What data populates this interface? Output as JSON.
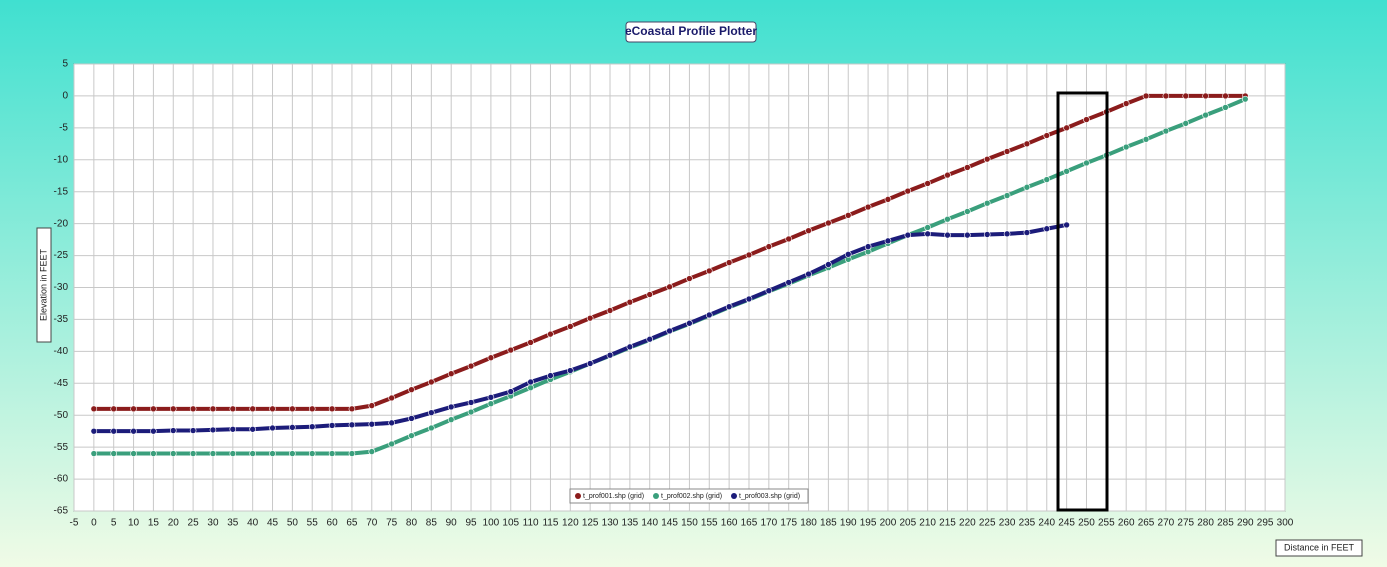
{
  "chart_data": {
    "type": "line",
    "title": "eCoastal Profile Plotter",
    "x_label": "Distance in FEET",
    "y_label": "Elevation in FEET",
    "x": [
      0,
      5,
      10,
      15,
      20,
      25,
      30,
      35,
      40,
      45,
      50,
      55,
      60,
      65,
      70,
      75,
      80,
      85,
      90,
      95,
      100,
      105,
      110,
      115,
      120,
      125,
      130,
      135,
      140,
      145,
      150,
      155,
      160,
      165,
      170,
      175,
      180,
      185,
      190,
      195,
      200,
      205,
      210,
      215,
      220,
      225,
      230,
      235,
      240,
      245,
      250,
      255,
      260,
      265,
      270,
      275,
      280,
      285,
      290
    ],
    "series": [
      {
        "name": "t_prof001.shp (grid)",
        "color": "#8b1c1c",
        "values": [
          -49,
          -49,
          -49,
          -49,
          -49,
          -49,
          -49,
          -49,
          -49,
          -49,
          -49,
          -49,
          -49,
          -49,
          -48.5,
          -47.3,
          -46.0,
          -44.8,
          -43.5,
          -42.3,
          -41.0,
          -39.8,
          -38.6,
          -37.3,
          -36.1,
          -34.8,
          -33.6,
          -32.3,
          -31.1,
          -29.9,
          -28.6,
          -27.4,
          -26.1,
          -24.9,
          -23.6,
          -22.4,
          -21.1,
          -19.9,
          -18.7,
          -17.4,
          -16.2,
          -14.9,
          -13.7,
          -12.4,
          -11.2,
          -9.9,
          -8.7,
          -7.5,
          -6.2,
          -5.0,
          -3.7,
          -2.5,
          -1.2,
          0,
          0,
          0,
          0,
          0,
          0
        ]
      },
      {
        "name": "t_prof002.shp (grid)",
        "color": "#3a9f7c",
        "values": [
          -56,
          -56,
          -56,
          -56,
          -56,
          -56,
          -56,
          -56,
          -56,
          -56,
          -56,
          -56,
          -56,
          -56,
          -55.7,
          -54.5,
          -53.2,
          -52.0,
          -50.7,
          -49.5,
          -48.2,
          -47.0,
          -45.7,
          -44.4,
          -43.2,
          -41.9,
          -40.7,
          -39.4,
          -38.2,
          -36.9,
          -35.7,
          -34.4,
          -33.1,
          -31.9,
          -30.6,
          -29.4,
          -28.1,
          -26.9,
          -25.6,
          -24.4,
          -23.1,
          -21.8,
          -20.6,
          -19.3,
          -18.1,
          -16.8,
          -15.6,
          -14.3,
          -13.1,
          -11.8,
          -10.5,
          -9.3,
          -8.0,
          -6.8,
          -5.5,
          -4.3,
          -3.0,
          -1.8,
          -0.5
        ]
      },
      {
        "name": "t_prof003.shp (grid)",
        "color": "#1c1c7a",
        "values": [
          -52.5,
          -52.5,
          -52.5,
          -52.5,
          -52.4,
          -52.4,
          -52.3,
          -52.2,
          -52.2,
          -52.0,
          -51.9,
          -51.8,
          -51.6,
          -51.5,
          -51.4,
          -51.2,
          -50.5,
          -49.6,
          -48.7,
          -48.0,
          -47.2,
          -46.3,
          -44.8,
          -43.8,
          -43.0,
          -41.9,
          -40.6,
          -39.3,
          -38.1,
          -36.8,
          -35.6,
          -34.3,
          -33.0,
          -31.8,
          -30.5,
          -29.2,
          -27.9,
          -26.4,
          -24.8,
          -23.6,
          -22.7,
          -21.8,
          -21.6,
          -21.8,
          -21.8,
          -21.7,
          -21.6,
          -21.4,
          -20.8,
          -20.2,
          null,
          null,
          null,
          null,
          null,
          null,
          null,
          null,
          null
        ]
      }
    ],
    "xlim": [
      -5,
      300
    ],
    "ylim": [
      -65,
      5
    ],
    "xticks": [
      -5,
      0,
      5,
      10,
      15,
      20,
      25,
      30,
      35,
      40,
      45,
      50,
      55,
      60,
      65,
      70,
      75,
      80,
      85,
      90,
      95,
      100,
      105,
      110,
      115,
      120,
      125,
      130,
      135,
      140,
      145,
      150,
      155,
      160,
      165,
      170,
      175,
      180,
      185,
      190,
      195,
      200,
      205,
      210,
      215,
      220,
      225,
      230,
      235,
      240,
      245,
      250,
      255,
      260,
      265,
      270,
      275,
      280,
      285,
      290,
      295,
      300
    ],
    "yticks": [
      5,
      0,
      -5,
      -10,
      -15,
      -20,
      -25,
      -30,
      -35,
      -40,
      -45,
      -50,
      -55,
      -60,
      -65
    ],
    "grid": true
  }
}
